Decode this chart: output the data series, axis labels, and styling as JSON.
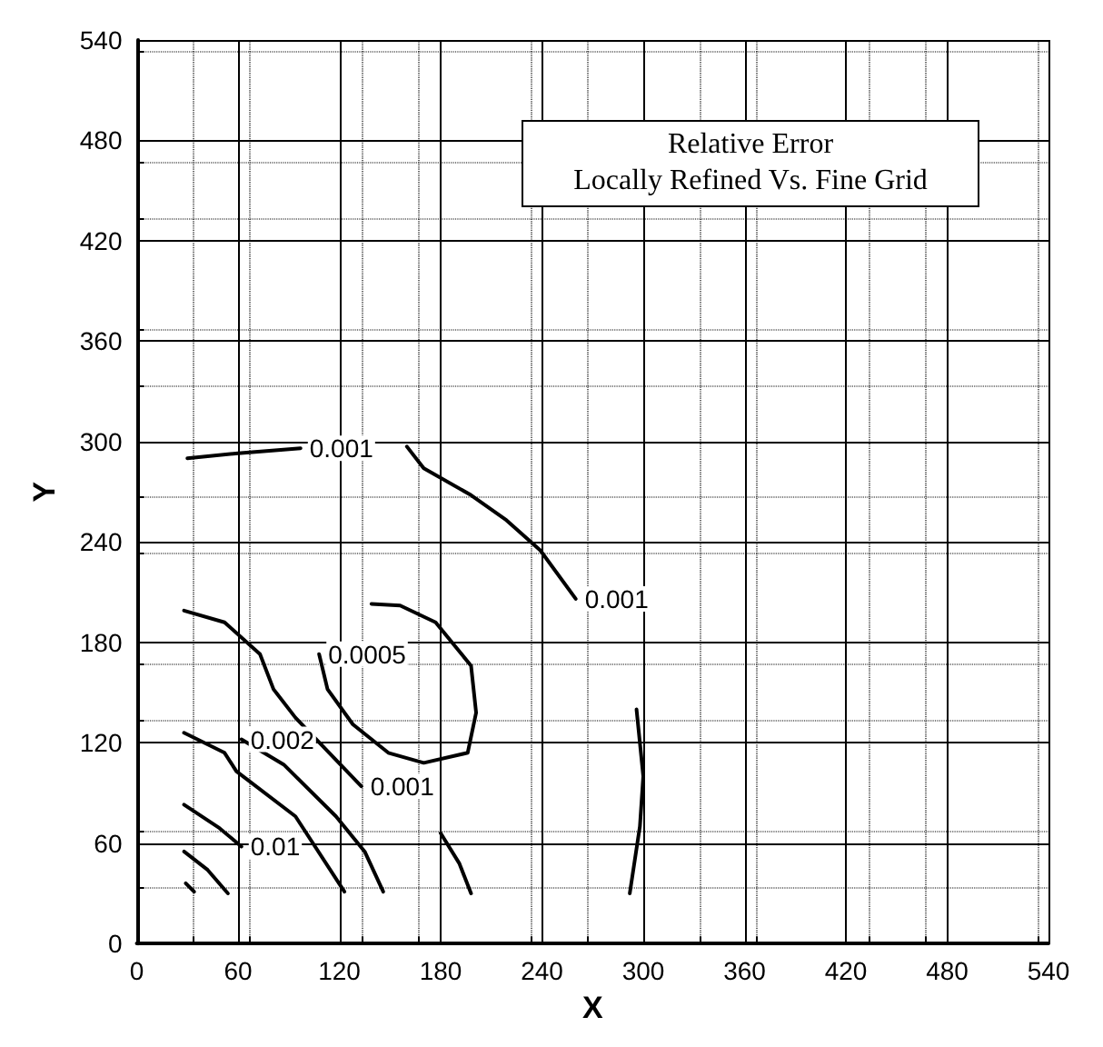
{
  "chart_data": {
    "type": "line",
    "xlabel": "X",
    "ylabel": "Y",
    "xlim": [
      0,
      540
    ],
    "ylim": [
      0,
      540
    ],
    "xticks": [
      0,
      60,
      120,
      180,
      240,
      300,
      360,
      420,
      480,
      540
    ],
    "yticks": [
      0,
      60,
      120,
      180,
      240,
      300,
      360,
      420,
      480,
      540
    ],
    "grid": true,
    "legend": false,
    "marker": "none",
    "line_style": "solid",
    "annotations": [
      "Relative Error",
      "Locally Refined Vs. Fine Grid"
    ],
    "series": [
      {
        "name": "0.001",
        "color": "#000000",
        "x": [
          30,
          60,
          97
        ],
        "values": [
          290,
          293,
          296
        ]
      },
      {
        "name": "0.001",
        "color": "#000000",
        "x": [
          160,
          170,
          198,
          219,
          239,
          260
        ],
        "values": [
          297,
          284,
          268,
          253,
          235,
          206
        ]
      },
      {
        "color": "#000000",
        "x": [
          296,
          300,
          298,
          292
        ],
        "values": [
          140,
          100,
          70,
          30
        ]
      },
      {
        "name": "0.0005",
        "color": "#000000",
        "x": [
          139,
          156,
          177,
          198,
          201,
          196,
          170,
          149,
          128,
          113,
          108
        ],
        "values": [
          203,
          202,
          192,
          166,
          138,
          114,
          108,
          114,
          131,
          152,
          173
        ]
      },
      {
        "name": "0.001",
        "color": "#000000",
        "x": [
          28,
          52,
          73,
          81,
          94,
          114,
          133
        ],
        "values": [
          199,
          192,
          173,
          152,
          135,
          114,
          94
        ]
      },
      {
        "color": "#000000",
        "x": [
          180,
          191,
          198
        ],
        "values": [
          66,
          48,
          30
        ]
      },
      {
        "name": "0.002",
        "color": "#000000",
        "x": [
          146,
          135,
          118,
          87,
          62
        ],
        "values": [
          31,
          55,
          76,
          107,
          122
        ]
      },
      {
        "color": "#000000",
        "x": [
          28,
          52,
          59,
          94,
          123
        ],
        "values": [
          126,
          114,
          103,
          76,
          31
        ]
      },
      {
        "name": "0.01",
        "color": "#000000",
        "x": [
          28,
          49,
          62
        ],
        "values": [
          83,
          69,
          58
        ]
      },
      {
        "color": "#000000",
        "x": [
          28,
          42,
          54
        ],
        "values": [
          55,
          44,
          30
        ]
      },
      {
        "color": "#000000",
        "x": [
          29,
          34
        ],
        "values": [
          36,
          31
        ]
      }
    ]
  }
}
